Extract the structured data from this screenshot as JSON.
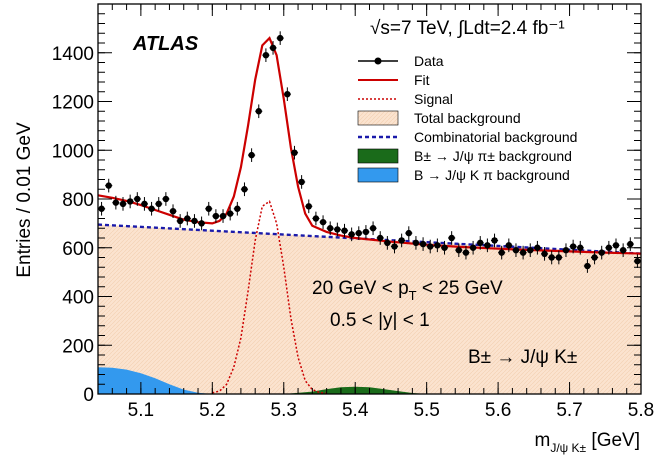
{
  "chart_data": {
    "type": "scatter",
    "title": "",
    "experiment_label": "ATLAS",
    "energy_label": "√s=7 TeV, ∫Ldt=2.4 fb⁻¹",
    "xlabel": "m_J/ψ K± [GeV]",
    "ylabel": "Entries / 0.01 GeV",
    "xlim": [
      5.04,
      5.8
    ],
    "ylim": [
      0,
      1600
    ],
    "grid": false,
    "legend_position": "top-right",
    "x_ticks": [
      "5.1",
      "5.2",
      "5.3",
      "5.4",
      "5.5",
      "5.6",
      "5.7",
      "5.8"
    ],
    "y_ticks": [
      "0",
      "200",
      "400",
      "600",
      "800",
      "1000",
      "1200",
      "1400"
    ],
    "annotations": {
      "pt_range": "20 GeV < p_T < 25 GeV",
      "y_range": "0.5 < |y| < 1",
      "decay": "B± → J/ψ K±"
    },
    "legend": [
      {
        "label": "Data",
        "style": "marker-line",
        "color": "#000000"
      },
      {
        "label": "Fit",
        "style": "line",
        "color": "#cc0000"
      },
      {
        "label": "Signal",
        "style": "dotted-line",
        "color": "#cc0000"
      },
      {
        "label": "Total background",
        "style": "box",
        "color": "#fbe3cf"
      },
      {
        "label": "Combinatorial background",
        "style": "dashed-line",
        "color": "#1a1aaa"
      },
      {
        "label": "B± → J/ψ π± background",
        "style": "box",
        "color": "#1a6b1a"
      },
      {
        "label": "B → J/ψ K π background",
        "style": "box",
        "color": "#3399ee"
      }
    ],
    "colors": {
      "data": "#000000",
      "fit": "#cc0000",
      "signal": "#cc0000",
      "total_background": "#fbe3cf",
      "combinatorial": "#1a1aaa",
      "jpsipi": "#1a6b1a",
      "jpsikpi": "#3399ee"
    },
    "series": [
      {
        "name": "Data",
        "x": [
          5.045,
          5.055,
          5.065,
          5.075,
          5.085,
          5.095,
          5.105,
          5.115,
          5.125,
          5.135,
          5.145,
          5.155,
          5.165,
          5.175,
          5.185,
          5.195,
          5.205,
          5.215,
          5.225,
          5.235,
          5.245,
          5.255,
          5.265,
          5.275,
          5.285,
          5.295,
          5.305,
          5.315,
          5.325,
          5.335,
          5.345,
          5.355,
          5.365,
          5.375,
          5.385,
          5.395,
          5.405,
          5.415,
          5.425,
          5.435,
          5.445,
          5.455,
          5.465,
          5.475,
          5.485,
          5.495,
          5.505,
          5.515,
          5.525,
          5.535,
          5.545,
          5.555,
          5.565,
          5.575,
          5.585,
          5.595,
          5.605,
          5.615,
          5.625,
          5.635,
          5.645,
          5.655,
          5.665,
          5.675,
          5.685,
          5.695,
          5.705,
          5.715,
          5.725,
          5.735,
          5.745,
          5.755,
          5.765,
          5.775,
          5.785,
          5.795
        ],
        "y": [
          760,
          855,
          785,
          780,
          790,
          800,
          780,
          760,
          780,
          800,
          750,
          710,
          720,
          710,
          700,
          760,
          730,
          730,
          740,
          760,
          840,
          980,
          1160,
          1390,
          1420,
          1460,
          1230,
          990,
          870,
          770,
          720,
          705,
          680,
          675,
          670,
          655,
          660,
          665,
          680,
          640,
          620,
          605,
          630,
          660,
          620,
          615,
          605,
          610,
          600,
          640,
          590,
          580,
          600,
          620,
          610,
          630,
          580,
          610,
          590,
          580,
          590,
          600,
          575,
          560,
          560,
          590,
          605,
          600,
          525,
          560,
          580,
          600,
          610,
          590,
          615,
          545
        ],
        "y_err": 28
      },
      {
        "name": "Fit",
        "x": [
          5.04,
          5.06,
          5.08,
          5.1,
          5.12,
          5.14,
          5.16,
          5.18,
          5.2,
          5.21,
          5.22,
          5.23,
          5.24,
          5.25,
          5.26,
          5.27,
          5.28,
          5.29,
          5.3,
          5.31,
          5.32,
          5.33,
          5.34,
          5.36,
          5.38,
          5.4,
          5.45,
          5.5,
          5.55,
          5.6,
          5.65,
          5.7,
          5.75,
          5.8
        ],
        "y": [
          815,
          805,
          792,
          775,
          755,
          735,
          715,
          705,
          700,
          710,
          740,
          810,
          930,
          1100,
          1290,
          1430,
          1460,
          1390,
          1210,
          1010,
          850,
          740,
          690,
          665,
          650,
          640,
          625,
          612,
          603,
          596,
          590,
          585,
          580,
          576
        ]
      },
      {
        "name": "Signal",
        "x": [
          5.2,
          5.21,
          5.22,
          5.23,
          5.24,
          5.25,
          5.26,
          5.27,
          5.28,
          5.29,
          5.3,
          5.31,
          5.32,
          5.33,
          5.34,
          5.35,
          5.36
        ],
        "y": [
          5,
          12,
          40,
          110,
          230,
          420,
          630,
          770,
          790,
          700,
          520,
          310,
          150,
          55,
          18,
          6,
          2
        ]
      },
      {
        "name": "Combinatorial background",
        "x": [
          5.04,
          5.8
        ],
        "y": [
          695,
          576
        ]
      },
      {
        "name": "B± → J/ψ π± background",
        "x": [
          5.3,
          5.34,
          5.36,
          5.38,
          5.4,
          5.42,
          5.44,
          5.46,
          5.48,
          5.5
        ],
        "y": [
          0,
          10,
          20,
          28,
          30,
          28,
          20,
          12,
          4,
          0
        ]
      },
      {
        "name": "B → J/ψ K π background",
        "x": [
          5.04,
          5.06,
          5.08,
          5.1,
          5.12,
          5.14,
          5.16,
          5.18,
          5.2
        ],
        "y": [
          110,
          108,
          100,
          85,
          65,
          40,
          18,
          5,
          0
        ]
      }
    ]
  }
}
